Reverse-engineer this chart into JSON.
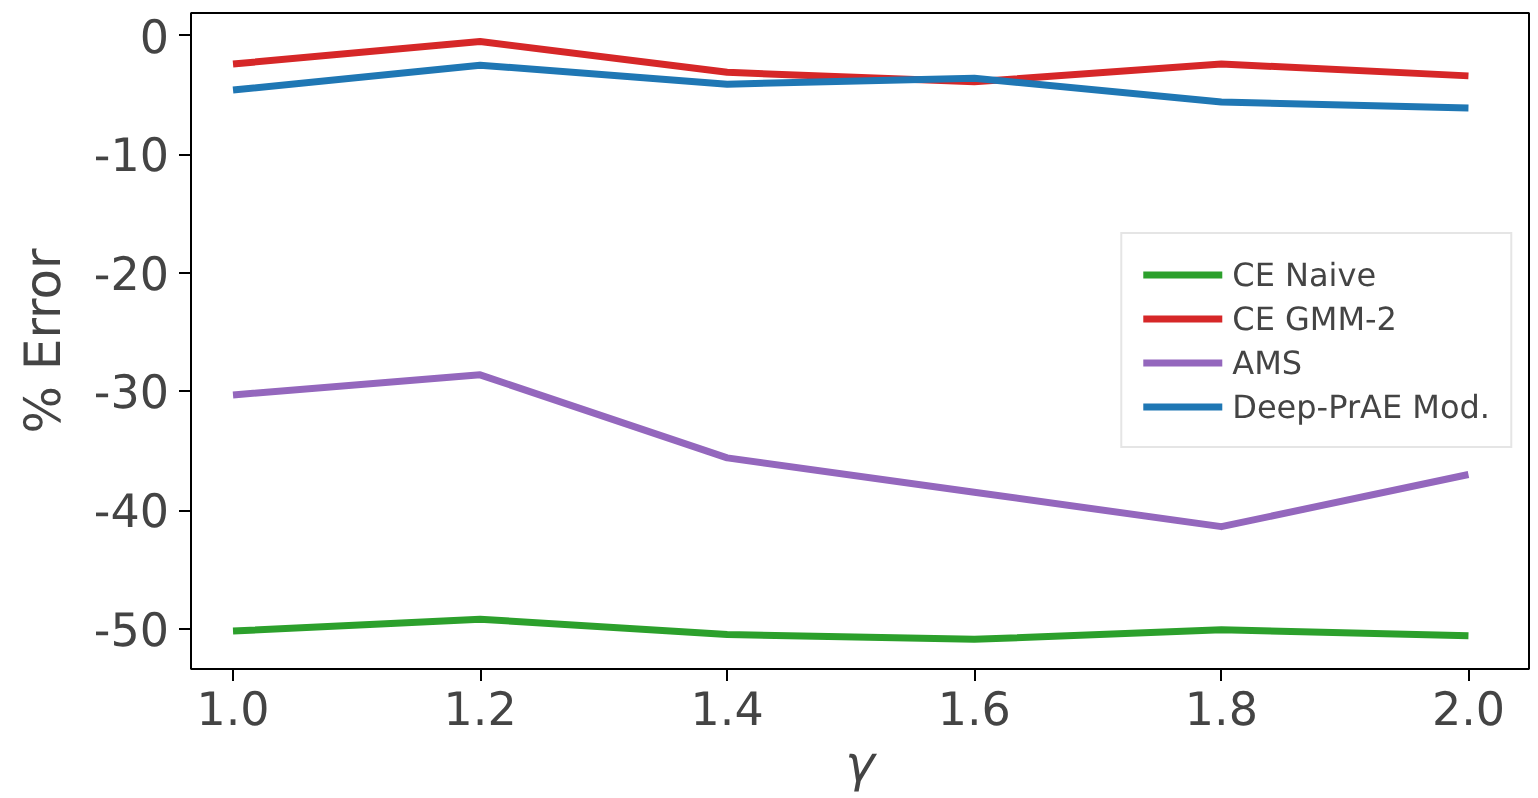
{
  "chart_data": {
    "type": "line",
    "xlabel": "γ",
    "ylabel": "% Error",
    "x": [
      1.0,
      1.2,
      1.4,
      1.6,
      1.8,
      2.0
    ],
    "series": [
      {
        "name": "CE Naive",
        "color": "#2ca02c",
        "values": [
          -50.2,
          -49.2,
          -50.5,
          -50.9,
          -50.1,
          -50.6
        ]
      },
      {
        "name": "CE GMM-2",
        "color": "#d62728",
        "values": [
          -2.4,
          -0.5,
          -3.1,
          -3.9,
          -2.4,
          -3.4
        ]
      },
      {
        "name": "AMS",
        "color": "#9467bd",
        "values": [
          -30.3,
          -28.6,
          -35.6,
          -38.5,
          -41.4,
          -37.0
        ]
      },
      {
        "name": "Deep-PrAE Mod.",
        "color": "#1f77b4",
        "values": [
          -4.6,
          -2.5,
          -4.1,
          -3.6,
          -5.6,
          -6.1
        ]
      }
    ],
    "xlim": [
      0.966,
      2.049
    ],
    "ylim": [
      -53.4,
      1.9
    ],
    "xticks": [
      {
        "value": 1.0,
        "label": "1.0"
      },
      {
        "value": 1.2,
        "label": "1.2"
      },
      {
        "value": 1.4,
        "label": "1.4"
      },
      {
        "value": 1.6,
        "label": "1.6"
      },
      {
        "value": 1.8,
        "label": "1.8"
      },
      {
        "value": 2.0,
        "label": "2.0"
      }
    ],
    "yticks": [
      -50,
      -40,
      -30,
      -20,
      -10,
      0
    ],
    "grid": false,
    "legend": "right",
    "marker": "none",
    "line_style": "solid"
  }
}
